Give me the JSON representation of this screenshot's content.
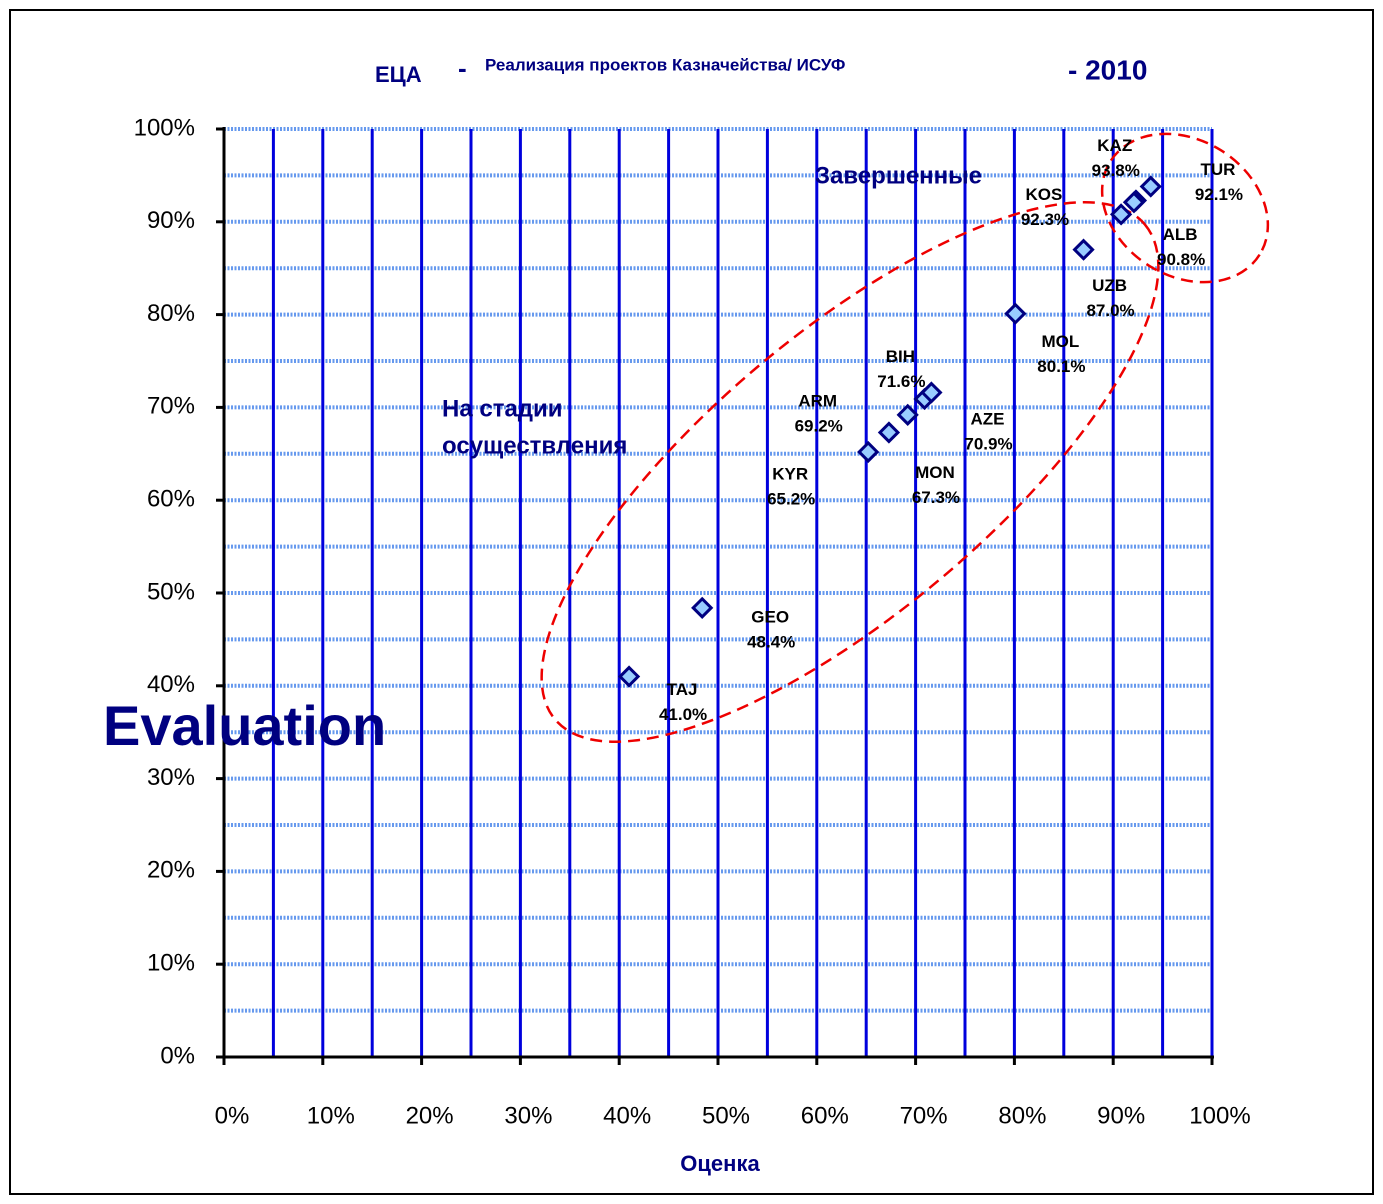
{
  "chart_data": {
    "type": "scatter",
    "title_parts": [
      "ЕЦА",
      "-",
      "Реализация проектов Казначейства/ ИСУФ",
      "- 2010"
    ],
    "xlabel": "Оценка",
    "annotations": [
      "Завершенные",
      "На стадии",
      "осуществления",
      "Evaluation"
    ],
    "labels": [
      "TAJ",
      "GEO",
      "KYR",
      "MON",
      "ARM",
      "AZE",
      "BIH",
      "MOL",
      "UZB",
      "ALB",
      "KOS",
      "TUR",
      "KAZ"
    ],
    "x": [
      41.0,
      48.4,
      65.2,
      67.3,
      69.2,
      70.9,
      71.6,
      80.1,
      87.0,
      90.8,
      92.3,
      92.1,
      93.8
    ],
    "values": [
      41.0,
      48.4,
      65.2,
      67.3,
      69.2,
      70.9,
      71.6,
      80.1,
      87.0,
      90.8,
      92.3,
      92.1,
      93.8
    ],
    "value_labels": [
      "41.0%",
      "48.4%",
      "65.2%",
      "67.3%",
      "69.2%",
      "70.9%",
      "71.6%",
      "80.1%",
      "87.0%",
      "90.8%",
      "92.3%",
      "92.1%",
      "93.8%"
    ],
    "color": "#99ccff",
    "edge_color": "#000080",
    "xlim": [
      0,
      100
    ],
    "ylim": [
      0,
      100
    ],
    "xticks": [
      {
        "value": 0,
        "label": "0%"
      },
      {
        "value": 10,
        "label": "10%"
      },
      {
        "value": 20,
        "label": "20%"
      },
      {
        "value": 30,
        "label": "30%"
      },
      {
        "value": 40,
        "label": "40%"
      },
      {
        "value": 50,
        "label": "50%"
      },
      {
        "value": 60,
        "label": "60%"
      },
      {
        "value": 70,
        "label": "70%"
      },
      {
        "value": 80,
        "label": "80%"
      },
      {
        "value": 90,
        "label": "90%"
      },
      {
        "value": 100,
        "label": "100%"
      }
    ],
    "yticks": [
      {
        "value": 0,
        "label": "0%"
      },
      {
        "value": 10,
        "label": "10%"
      },
      {
        "value": 20,
        "label": "20%"
      },
      {
        "value": 30,
        "label": "30%"
      },
      {
        "value": 40,
        "label": "40%"
      },
      {
        "value": 50,
        "label": "50%"
      },
      {
        "value": 60,
        "label": "60%"
      },
      {
        "value": 70,
        "label": "70%"
      },
      {
        "value": 80,
        "label": "80%"
      },
      {
        "value": 90,
        "label": "90%"
      },
      {
        "value": 100,
        "label": "100%"
      }
    ],
    "xminorticks": [
      5,
      15,
      25,
      35,
      45,
      55,
      65,
      75,
      85,
      95
    ],
    "yminorticks": [
      5,
      15,
      25,
      35,
      45,
      55,
      65,
      75,
      85,
      95
    ],
    "grid": true,
    "xgrid_color": "#0000dd",
    "ygrid_color": "#6699ee"
  }
}
